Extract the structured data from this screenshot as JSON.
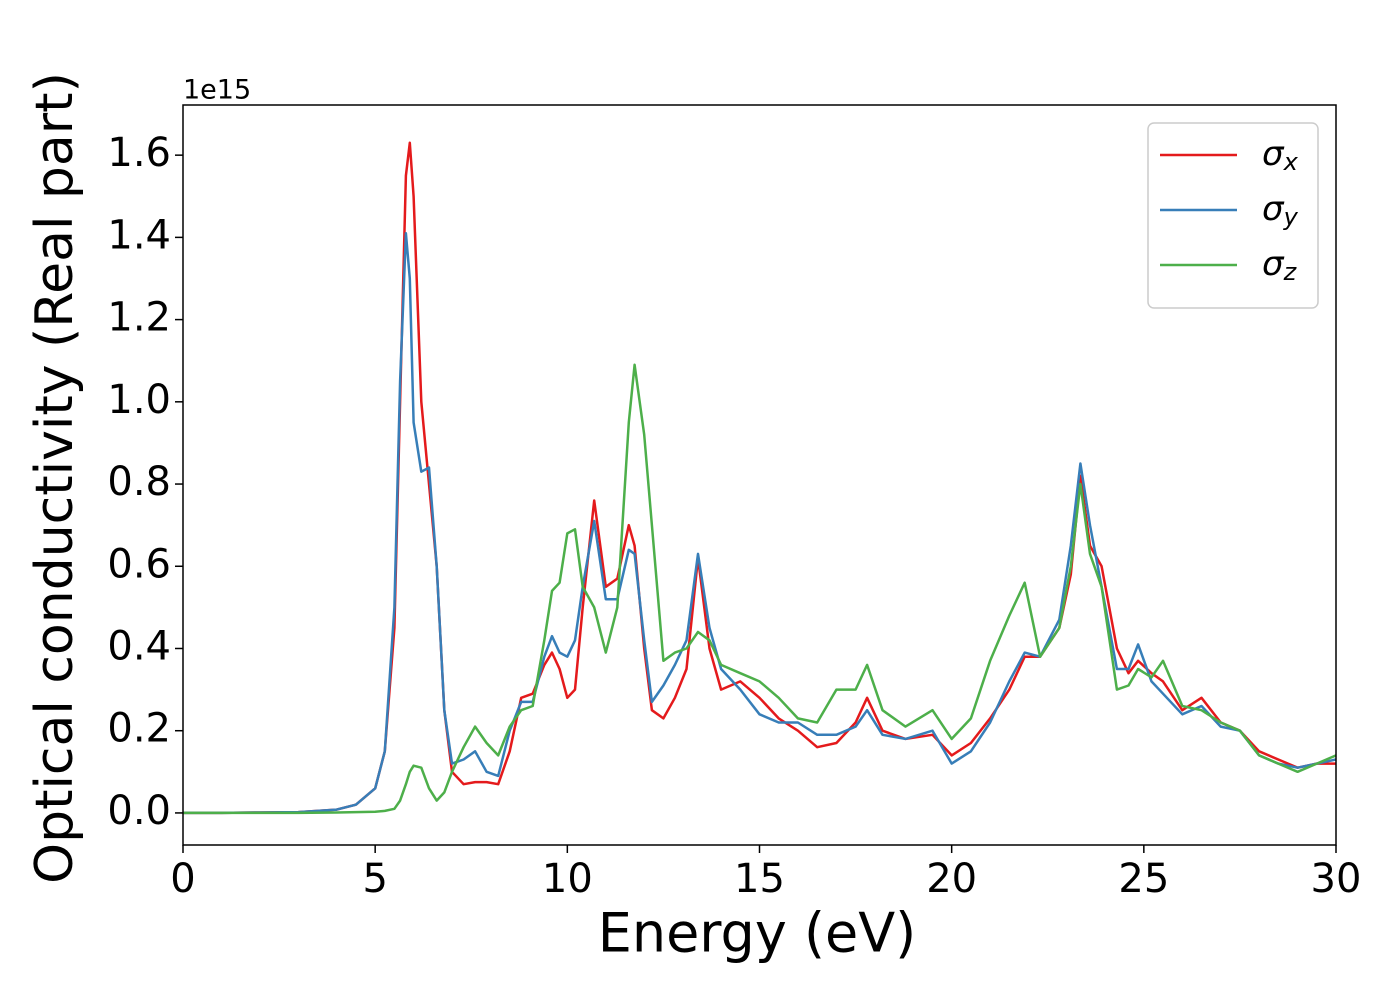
{
  "chart_data": {
    "type": "line",
    "xlabel": "Energy (eV)",
    "ylabel": "Optical conductivity (Real part)",
    "y_offset_label": "1e15",
    "x": [
      0,
      1,
      2,
      3,
      4,
      4.5,
      5,
      5.25,
      5.5,
      5.65,
      5.8,
      5.9,
      6.0,
      6.2,
      6.4,
      6.6,
      6.8,
      7.0,
      7.3,
      7.6,
      7.9,
      8.2,
      8.5,
      8.8,
      9.1,
      9.4,
      9.6,
      9.8,
      10.0,
      10.2,
      10.4,
      10.7,
      11.0,
      11.3,
      11.6,
      11.75,
      12.0,
      12.2,
      12.5,
      12.8,
      13.1,
      13.4,
      13.7,
      14.0,
      14.5,
      15.0,
      15.5,
      16.0,
      16.5,
      17.0,
      17.5,
      17.8,
      18.2,
      18.8,
      19.5,
      20.0,
      20.5,
      21.0,
      21.5,
      21.9,
      22.3,
      22.8,
      23.1,
      23.35,
      23.6,
      23.9,
      24.3,
      24.6,
      24.85,
      25.2,
      25.5,
      26.0,
      26.5,
      27.0,
      27.5,
      28.0,
      28.5,
      29.0,
      29.5,
      30
    ],
    "series": [
      {
        "name": "σx",
        "color": "#e41a1c",
        "values": [
          0,
          0,
          0.001,
          0.002,
          0.008,
          0.02,
          0.06,
          0.15,
          0.45,
          1.0,
          1.55,
          1.63,
          1.5,
          1.0,
          0.8,
          0.6,
          0.25,
          0.1,
          0.07,
          0.075,
          0.075,
          0.07,
          0.15,
          0.28,
          0.29,
          0.36,
          0.39,
          0.35,
          0.28,
          0.3,
          0.5,
          0.76,
          0.55,
          0.57,
          0.7,
          0.65,
          0.4,
          0.25,
          0.23,
          0.28,
          0.35,
          0.62,
          0.4,
          0.3,
          0.32,
          0.28,
          0.23,
          0.2,
          0.16,
          0.17,
          0.22,
          0.28,
          0.2,
          0.18,
          0.19,
          0.14,
          0.17,
          0.23,
          0.3,
          0.38,
          0.38,
          0.45,
          0.58,
          0.82,
          0.65,
          0.6,
          0.4,
          0.34,
          0.37,
          0.34,
          0.32,
          0.25,
          0.28,
          0.22,
          0.2,
          0.15,
          0.13,
          0.11,
          0.12,
          0.12
        ]
      },
      {
        "name": "σy",
        "color": "#377eb8",
        "values": [
          0,
          0,
          0.001,
          0.002,
          0.008,
          0.02,
          0.06,
          0.15,
          0.5,
          1.05,
          1.41,
          1.3,
          0.95,
          0.83,
          0.84,
          0.6,
          0.25,
          0.12,
          0.13,
          0.15,
          0.1,
          0.09,
          0.2,
          0.27,
          0.27,
          0.38,
          0.43,
          0.39,
          0.38,
          0.42,
          0.55,
          0.71,
          0.52,
          0.52,
          0.64,
          0.63,
          0.42,
          0.27,
          0.31,
          0.36,
          0.42,
          0.63,
          0.45,
          0.35,
          0.3,
          0.24,
          0.22,
          0.22,
          0.19,
          0.19,
          0.21,
          0.25,
          0.19,
          0.18,
          0.2,
          0.12,
          0.15,
          0.22,
          0.32,
          0.39,
          0.38,
          0.47,
          0.65,
          0.85,
          0.7,
          0.55,
          0.35,
          0.35,
          0.41,
          0.32,
          0.29,
          0.24,
          0.26,
          0.21,
          0.2,
          0.14,
          0.12,
          0.11,
          0.12,
          0.13
        ]
      },
      {
        "name": "σz",
        "color": "#4daf4a",
        "values": [
          0,
          0,
          0,
          0,
          0.001,
          0.002,
          0.003,
          0.005,
          0.01,
          0.03,
          0.07,
          0.1,
          0.115,
          0.11,
          0.06,
          0.03,
          0.05,
          0.1,
          0.16,
          0.21,
          0.17,
          0.14,
          0.21,
          0.25,
          0.26,
          0.42,
          0.54,
          0.56,
          0.68,
          0.69,
          0.55,
          0.5,
          0.39,
          0.5,
          0.95,
          1.09,
          0.92,
          0.7,
          0.37,
          0.39,
          0.4,
          0.44,
          0.42,
          0.36,
          0.34,
          0.32,
          0.28,
          0.23,
          0.22,
          0.3,
          0.3,
          0.36,
          0.25,
          0.21,
          0.25,
          0.18,
          0.23,
          0.37,
          0.48,
          0.56,
          0.38,
          0.45,
          0.6,
          0.8,
          0.63,
          0.55,
          0.3,
          0.31,
          0.35,
          0.33,
          0.37,
          0.26,
          0.25,
          0.22,
          0.2,
          0.14,
          0.12,
          0.1,
          0.12,
          0.14
        ]
      }
    ],
    "xlim": [
      0,
      30
    ],
    "xticks": [
      0,
      5,
      10,
      15,
      20,
      25,
      30
    ],
    "ylim": [
      -0.078,
      1.722
    ],
    "yticks": [
      {
        "value": 0,
        "label": "0.0"
      },
      {
        "value": 0.2,
        "label": "0.2"
      },
      {
        "value": 0.4,
        "label": "0.4"
      },
      {
        "value": 0.6,
        "label": "0.6"
      },
      {
        "value": 0.8,
        "label": "0.8"
      },
      {
        "value": 1.0,
        "label": "1.0"
      },
      {
        "value": 1.2,
        "label": "1.2"
      },
      {
        "value": 1.4,
        "label": "1.4"
      },
      {
        "value": 1.6,
        "label": "1.6"
      }
    ],
    "legend": "upper right",
    "grid": false
  }
}
